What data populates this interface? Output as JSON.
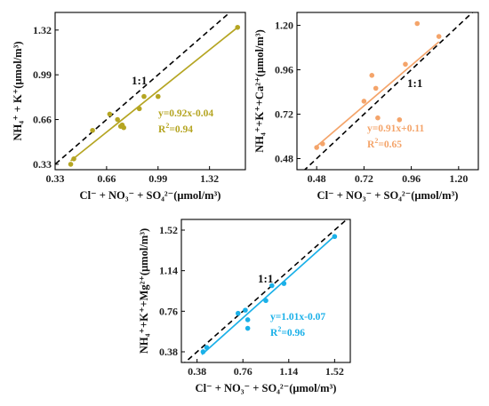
{
  "chart_data": [
    {
      "type": "scatter",
      "color": "#b5a522",
      "xlabel": "Cl⁻ + NO₃⁻ + SO₄²⁻(μmol/m³)",
      "ylabel": "NH₄⁺ + K⁺(μmol/m³)",
      "xticks": [
        "0.33",
        "0.66",
        "0.99",
        "1.32"
      ],
      "yticks": [
        "0.33",
        "0.66",
        "0.99",
        "1.32"
      ],
      "xlim": [
        0.33,
        1.55
      ],
      "ylim": [
        0.29,
        1.45
      ],
      "reference_label": "1:1",
      "fit": {
        "slope": 0.92,
        "intercept": -0.04,
        "x_range": [
          0.43,
          1.5
        ]
      },
      "equation": "y=0.92x-0.04",
      "r2_prefix": "R",
      "r2_value": "=0.94",
      "x": [
        0.43,
        0.45,
        0.57,
        0.68,
        0.73,
        0.75,
        0.76,
        0.77,
        0.87,
        0.9,
        0.99,
        1.5
      ],
      "y": [
        0.33,
        0.37,
        0.58,
        0.7,
        0.66,
        0.61,
        0.62,
        0.6,
        0.74,
        0.83,
        0.83,
        1.34
      ]
    },
    {
      "type": "scatter",
      "color": "#f4a46a",
      "xlabel": "Cl⁻ + NO₃⁻ + SO₄²⁻(μmol/m³)",
      "ylabel": "NH₄⁺+K⁺+Ca²⁺(μmol/m³)",
      "xticks": [
        "0.48",
        "0.72",
        "0.96",
        "1.20"
      ],
      "yticks": [
        "0.48",
        "0.72",
        "0.96",
        "1.20"
      ],
      "xlim": [
        0.38,
        1.3
      ],
      "ylim": [
        0.42,
        1.27
      ],
      "reference_label": "1:1",
      "fit": {
        "slope": 0.91,
        "intercept": 0.11,
        "x_range": [
          0.48,
          1.1
        ]
      },
      "equation": "y=0.91x+0.11",
      "r2_prefix": "R",
      "r2_value": "=0.65",
      "x": [
        0.48,
        0.51,
        0.72,
        0.76,
        0.78,
        0.79,
        0.9,
        0.93,
        0.99,
        1.1
      ],
      "y": [
        0.54,
        0.56,
        0.79,
        0.93,
        0.86,
        0.7,
        0.69,
        0.99,
        1.21,
        1.14
      ]
    },
    {
      "type": "scatter",
      "color": "#1ab0e8",
      "xlabel": "Cl⁻ + NO₃⁻ + SO₄²⁻(μmol/m³)",
      "ylabel": "NH₄⁺+K⁺+Mg²⁺(μmol/m³)",
      "xticks": [
        "0.38",
        "0.76",
        "1.14",
        "1.52"
      ],
      "yticks": [
        "0.38",
        "0.76",
        "1.14",
        "1.52"
      ],
      "xlim": [
        0.25,
        1.65
      ],
      "ylim": [
        0.28,
        1.62
      ],
      "reference_label": "1:1",
      "fit": {
        "slope": 1.01,
        "intercept": -0.07,
        "x_range": [
          0.42,
          1.52
        ]
      },
      "equation": "y=1.01x-0.07",
      "r2_prefix": "R",
      "r2_value": "=0.96",
      "x": [
        0.43,
        0.46,
        0.72,
        0.78,
        0.8,
        0.8,
        0.95,
        1.0,
        1.1,
        1.52
      ],
      "y": [
        0.38,
        0.42,
        0.74,
        0.77,
        0.68,
        0.6,
        0.86,
        1.0,
        1.02,
        1.46
      ]
    }
  ]
}
